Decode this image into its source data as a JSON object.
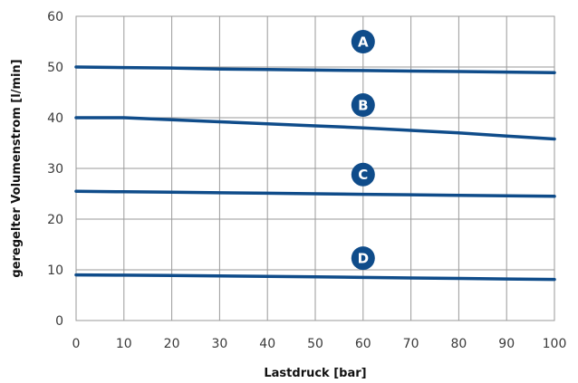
{
  "chart_data": {
    "type": "line",
    "title": "",
    "xlabel": "Lastdruck [bar]",
    "ylabel": "geregelter Volumenstrom [l/min]",
    "xlim": [
      0,
      100
    ],
    "ylim": [
      0,
      60
    ],
    "x_ticks": [
      "0",
      "10",
      "20",
      "30",
      "40",
      "50",
      "60",
      "70",
      "80",
      "90",
      "100"
    ],
    "y_ticks": [
      "0",
      "10",
      "20",
      "30",
      "40",
      "50",
      "60"
    ],
    "grid": true,
    "line_color": "#0f4c8a",
    "x": [
      0,
      10,
      20,
      30,
      40,
      50,
      60,
      70,
      80,
      90,
      100
    ],
    "series": [
      {
        "name": "A",
        "values": [
          50,
          49.9,
          49.8,
          49.6,
          49.5,
          49.4,
          49.3,
          49.2,
          49.1,
          49.0,
          48.9
        ],
        "label_x": 60,
        "label_y": 55
      },
      {
        "name": "B",
        "values": [
          40,
          40,
          39.6,
          39.2,
          38.8,
          38.4,
          38.0,
          37.5,
          37.0,
          36.4,
          35.8
        ],
        "label_x": 60,
        "label_y": 42.5
      },
      {
        "name": "C",
        "values": [
          25.5,
          25.4,
          25.3,
          25.2,
          25.1,
          25.0,
          24.9,
          24.8,
          24.7,
          24.6,
          24.5
        ],
        "label_x": 60,
        "label_y": 28.8
      },
      {
        "name": "D",
        "values": [
          9.0,
          8.95,
          8.9,
          8.8,
          8.7,
          8.6,
          8.5,
          8.4,
          8.3,
          8.2,
          8.1
        ],
        "label_x": 60,
        "label_y": 12.3
      }
    ]
  }
}
